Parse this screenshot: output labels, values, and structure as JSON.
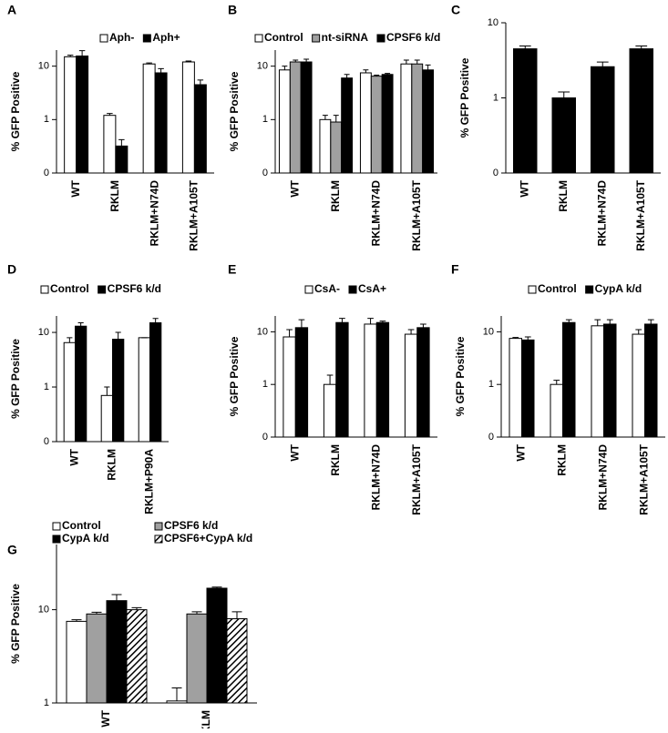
{
  "chart_data": [
    {
      "type": "bar",
      "label": "A",
      "ylabel": "% GFP Positive",
      "log_scale": true,
      "categories": [
        "WT",
        "RKLM",
        "RKLM+N74D",
        "RKLM+A105T"
      ],
      "series": [
        {
          "name": "Aph-",
          "color": "#ffffff",
          "values": [
            15,
            1.2,
            11,
            12
          ],
          "errors": [
            1,
            0.1,
            0.5,
            0.5
          ]
        },
        {
          "name": "Aph+",
          "color": "#000000",
          "values": [
            15.5,
            0.32,
            7.5,
            4.5
          ],
          "errors": [
            4,
            0.1,
            1.5,
            1
          ]
        }
      ],
      "ylim": [
        0.1,
        20
      ],
      "yticks": [
        {
          "value": 0.1,
          "label": "0"
        },
        1,
        10
      ]
    },
    {
      "type": "bar",
      "label": "B",
      "ylabel": "% GFP Positive",
      "log_scale": true,
      "categories": [
        "WT",
        "RKLM",
        "RKLM+N74D",
        "RKLM+A105T"
      ],
      "series": [
        {
          "name": "Control",
          "color": "#ffffff",
          "values": [
            8.5,
            1.0,
            7.5,
            11
          ],
          "errors": [
            1.5,
            0.2,
            1,
            2
          ]
        },
        {
          "name": "nt-siRNA",
          "color": "#a0a0a0",
          "values": [
            12,
            0.9,
            6.5,
            11
          ],
          "errors": [
            1,
            0.3,
            0.3,
            2
          ]
        },
        {
          "name": "CPSF6 k/d",
          "color": "#000000",
          "values": [
            12,
            6,
            7,
            8.5
          ],
          "errors": [
            1.5,
            1,
            0.3,
            2
          ]
        }
      ],
      "ylim": [
        0.1,
        20
      ],
      "yticks": [
        {
          "value": 0.1,
          "label": "0"
        },
        1,
        10
      ]
    },
    {
      "type": "bar",
      "label": "C",
      "ylabel": "% GFP Positive",
      "log_scale": true,
      "categories": [
        "WT",
        "RKLM",
        "RKLM+N74D",
        "RKLM+A105T"
      ],
      "series": [
        {
          "color": "#000000",
          "values": [
            4.5,
            1.0,
            2.6,
            4.5
          ],
          "errors": [
            0.4,
            0.2,
            0.4,
            0.4
          ]
        }
      ],
      "ylim": [
        0.1,
        10
      ],
      "yticks": [
        {
          "value": 0.1,
          "label": "0"
        },
        1,
        10
      ]
    },
    {
      "type": "bar",
      "label": "D",
      "ylabel": "% GFP Positive",
      "log_scale": true,
      "categories": [
        "WT",
        "RKLM",
        "RKLM+P90A"
      ],
      "series": [
        {
          "name": "Control",
          "color": "#ffffff",
          "values": [
            6.5,
            0.7,
            8
          ],
          "errors": [
            1.5,
            0.3,
            0
          ]
        },
        {
          "name": "CPSF6 k/d",
          "color": "#000000",
          "values": [
            13,
            7.5,
            15
          ],
          "errors": [
            2,
            2.5,
            3
          ]
        }
      ],
      "ylim": [
        0.1,
        20
      ],
      "yticks": [
        {
          "value": 0.1,
          "label": "0"
        },
        1,
        10
      ]
    },
    {
      "type": "bar",
      "label": "E",
      "ylabel": "% GFP Positive",
      "log_scale": true,
      "categories": [
        "WT",
        "RKLM",
        "RKLM+N74D",
        "RKLM+A105T"
      ],
      "series": [
        {
          "name": "CsA-",
          "color": "#ffffff",
          "values": [
            8,
            1.0,
            14,
            9
          ],
          "errors": [
            3,
            0.5,
            4,
            2
          ]
        },
        {
          "name": "CsA+",
          "color": "#000000",
          "values": [
            12,
            15,
            15,
            12
          ],
          "errors": [
            5,
            3,
            1,
            2
          ]
        }
      ],
      "ylim": [
        0.1,
        20
      ],
      "yticks": [
        {
          "value": 0.1,
          "label": "0"
        },
        1,
        10
      ]
    },
    {
      "type": "bar",
      "label": "F",
      "ylabel": "% GFP Positive",
      "log_scale": true,
      "categories": [
        "WT",
        "RKLM",
        "RKLM+N74D",
        "RKLM+A105T"
      ],
      "series": [
        {
          "name": "Control",
          "color": "#ffffff",
          "values": [
            7.5,
            1.0,
            13,
            9
          ],
          "errors": [
            0.3,
            0.2,
            4,
            2
          ]
        },
        {
          "name": "CypA k/d",
          "color": "#000000",
          "values": [
            7,
            15,
            14,
            14
          ],
          "errors": [
            1,
            2,
            3,
            3
          ]
        }
      ],
      "ylim": [
        0.1,
        20
      ],
      "yticks": [
        {
          "value": 0.1,
          "label": "0"
        },
        1,
        10
      ]
    },
    {
      "type": "bar",
      "label": "G",
      "ylabel": "% GFP Positive",
      "log_scale": true,
      "categories": [
        "WT",
        "RKLM"
      ],
      "series": [
        {
          "name": "Control",
          "color": "#ffffff",
          "values": [
            7.5,
            1.05
          ],
          "errors": [
            0.3,
            0.4
          ]
        },
        {
          "name": "CPSF6 k/d",
          "color": "#a0a0a0",
          "values": [
            9,
            9
          ],
          "errors": [
            0.4,
            0.5
          ]
        },
        {
          "name": "CypA k/d",
          "color": "#000000",
          "values": [
            12.5,
            17
          ],
          "errors": [
            2,
            0.5
          ]
        },
        {
          "name": "CPSF6+CypA k/d",
          "color": "#ffffff",
          "hatch": true,
          "values": [
            10,
            8
          ],
          "errors": [
            0.5,
            1.5
          ]
        }
      ],
      "ylim": [
        1,
        50
      ],
      "yticks": [
        1,
        10
      ]
    }
  ]
}
